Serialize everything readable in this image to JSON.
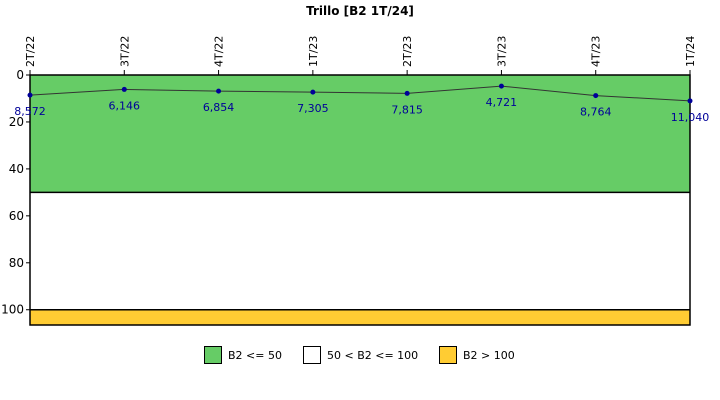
{
  "chart_data": {
    "type": "line",
    "title": "Trillo [B2 1T/24]",
    "categories": [
      "2T/22",
      "3T/22",
      "4T/22",
      "1T/23",
      "2T/23",
      "3T/23",
      "4T/23",
      "1T/24"
    ],
    "values": [
      8.572,
      6.146,
      6.854,
      7.305,
      7.815,
      4.721,
      8.764,
      11.04
    ],
    "value_labels": [
      "8,572",
      "6,146",
      "6,854",
      "7,305",
      "7,815",
      "4,721",
      "8,764",
      "11,040"
    ],
    "y_axis": {
      "ticks": [
        0,
        20,
        40,
        60,
        80,
        100
      ],
      "ylim": [
        0,
        106.5
      ],
      "inverted": true
    },
    "x_axis_position": "top",
    "grid": false,
    "bands": [
      {
        "from": 0,
        "to": 50,
        "color": "#66cc66",
        "label": "B2 <= 50"
      },
      {
        "from": 50,
        "to": 100,
        "color": "#ffffff",
        "label": "50 < B2 <= 100"
      },
      {
        "from": 100,
        "to": 106.5,
        "color": "#ffcc33",
        "label": "B2 > 100"
      }
    ],
    "line_color": "#333333",
    "point_color": "#000099",
    "value_label_color": "#000099",
    "legend_position": "bottom"
  }
}
